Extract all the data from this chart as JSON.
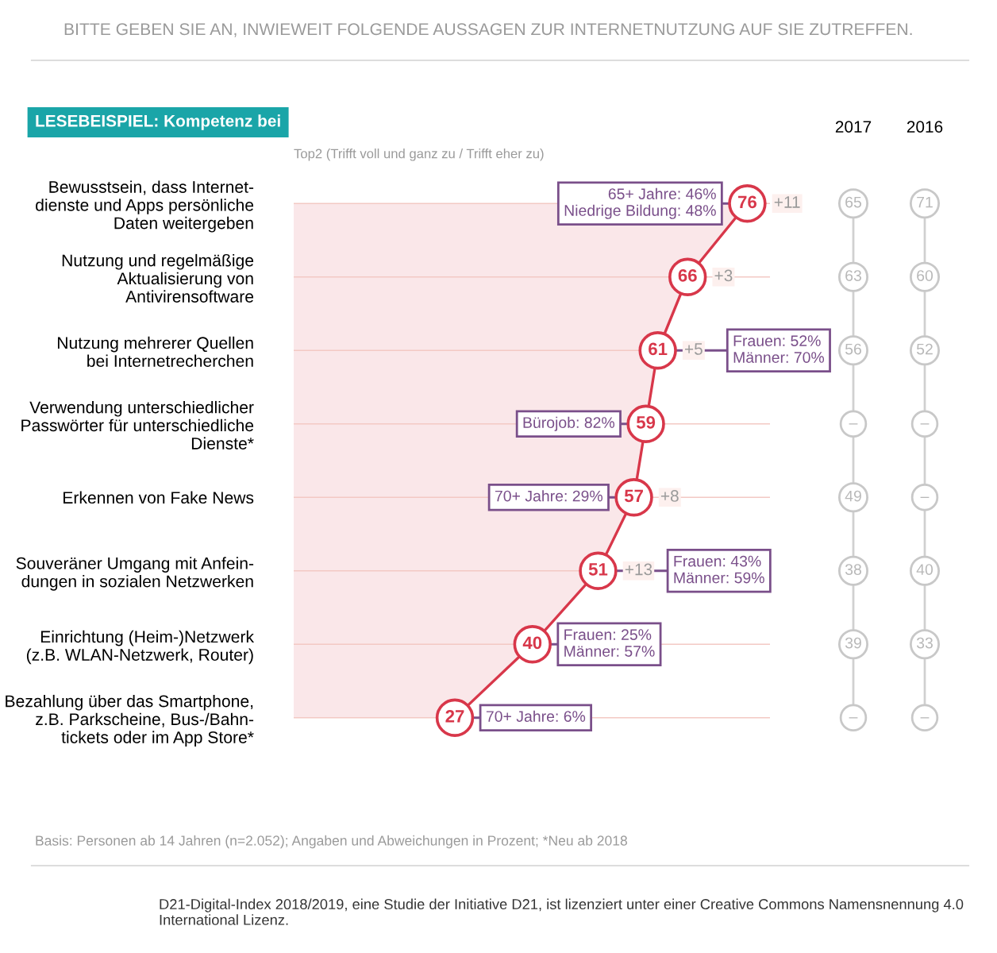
{
  "chart_data": [
    {
      "type": "area",
      "orientation": "horizontal",
      "title": "BITTE GEBEN SIE AN, INWIEWEIT FOLGENDE AUSSAGEN ZUR INTERNETNUTZUNG AUF SIE ZUTREFFEN.",
      "subtitle": "Top2 (Trifft voll und ganz zu / Trifft eher zu)",
      "categories": [
        "Bewusstsein, dass Internet-\ndienste und Apps persönliche\nDaten weitergeben",
        "Nutzung und regelmäßige\nAktualisierung von\nAntivirensoftware",
        "Nutzung mehrerer Quellen\nbei Internetrecherchen",
        "Verwendung unterschiedlicher\nPasswörter für unterschiedliche\nDienste*",
        "Erkennen von Fake News",
        "Souveräner Umgang mit Anfein-\ndungen in sozialen Netzwerken",
        "Einrichtung (Heim-)Netzwerk\n(z.B. WLAN-Netzwerk, Router)",
        "Bezahlung über das Smartphone,\nz.B. Parkscheine, Bus-/Bahn-\ntickets oder im App Store*"
      ],
      "series": [
        {
          "color": "#d8374a",
          "values": [
            76,
            66,
            61,
            59,
            57,
            51,
            40,
            27
          ]
        }
      ],
      "marker": "circle",
      "data_labels": true,
      "grid": "y",
      "tick_labels": "y",
      "annotations": [
        "LESEBEISPIEL: Kompetenz bei",
        "Basis: Personen ab 14 Jahren (n=2.052); Angaben und Abweichungen in Prozent; *Neu ab 2018",
        "D21-Digital-Index 2018/2019, eine Studie der Initiative D21, ist lizenziert unter einer Creative Commons Namensnennung 4.0 International Lizenz.",
        {
          "text": "+11",
          "x": 76,
          "y": "Bewusstsein, dass Internet-\ndienste und Apps persönliche\nDaten weitergeben"
        },
        {
          "text": "+3",
          "x": 66,
          "y": "Nutzung und regelmäßige\nAktualisierung von\nAntivirensoftware"
        },
        {
          "text": "+5",
          "x": 61,
          "y": "Nutzung mehrerer Quellen\nbei Internetrecherchen"
        },
        {
          "text": "+8",
          "x": 57,
          "y": "Erkennen von Fake News"
        },
        {
          "text": "+13",
          "x": 51,
          "y": "Souveräner Umgang mit Anfein-\ndungen in sozialen Netzwerken"
        },
        {
          "text": "65+ Jahre: 46%\nNiedrige Bildung: 48%",
          "x": 76,
          "y": "Bewusstsein, dass Internet-\ndienste und Apps persönliche\nDaten weitergeben"
        },
        {
          "text": "Frauen: 52%\nMänner: 70%",
          "x": 61,
          "y": "Nutzung mehrerer Quellen\nbei Internetrecherchen"
        },
        {
          "text": "Bürojob: 82%",
          "x": 59,
          "y": "Verwendung unterschiedlicher\nPasswörter für unterschiedliche\nDienste*"
        },
        {
          "text": "70+ Jahre: 29%",
          "x": 57,
          "y": "Erkennen von Fake News"
        },
        {
          "text": "Frauen: 43%\nMänner: 59%",
          "x": 51,
          "y": "Souveräner Umgang mit Anfein-\ndungen in sozialen Netzwerken"
        },
        {
          "text": "Frauen: 25%\nMänner: 57%",
          "x": 40,
          "y": "Einrichtung (Heim-)Netzwerk\n(z.B. WLAN-Netzwerk, Router)"
        },
        {
          "text": "70+ Jahre: 6%",
          "x": 27,
          "y": "Bezahlung über das Smartphone,\nz.B. Parkscheine, Bus-/Bahn-\ntickets oder im App Store*"
        }
      ]
    },
    {
      "type": "other",
      "categories": [
        "2017",
        "2016"
      ],
      "cell_labels": [
        [
          "65",
          "71"
        ],
        [
          "63",
          "60"
        ],
        [
          "56",
          "52"
        ],
        [
          "–",
          "–"
        ],
        [
          "49",
          "–"
        ],
        [
          "38",
          "40"
        ],
        [
          "39",
          "33"
        ],
        [
          "–",
          "–"
        ]
      ]
    }
  ]
}
